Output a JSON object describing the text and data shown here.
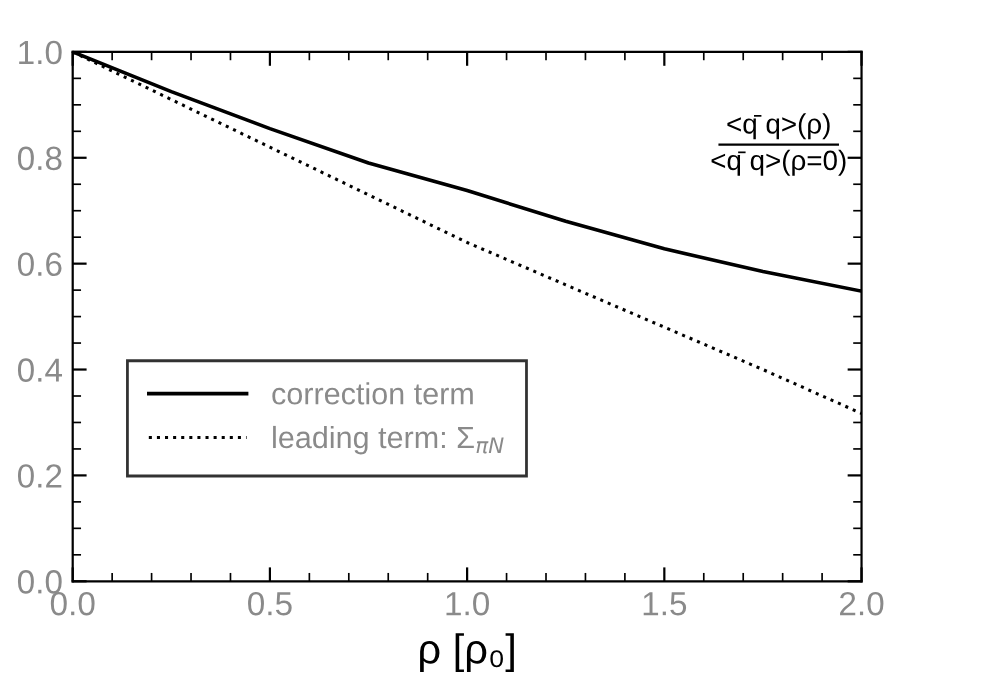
{
  "chart_data": {
    "type": "line",
    "xlabel": "ρ [ρ₀]",
    "x": [
      0,
      0.25,
      0.5,
      0.75,
      1.0,
      1.25,
      1.5,
      1.75,
      2.0
    ],
    "series": [
      {
        "name": "correction term",
        "color": "#000000",
        "line_style": "solid",
        "values": [
          1.0,
          0.925,
          0.855,
          0.79,
          0.738,
          0.68,
          0.628,
          0.585,
          0.548
        ]
      },
      {
        "name": "leading term: Σ$_{πN}$",
        "color": "#000000",
        "line_style": "dotted",
        "values": [
          1.0,
          0.91,
          0.82,
          0.73,
          0.64,
          0.56,
          0.48,
          0.4,
          0.317
        ]
      }
    ],
    "annotations": [
      "<q̄ q>(ρ)",
      "<q̄ q>(ρ=0)"
    ],
    "xlim": [
      0,
      2.0
    ],
    "xticks": [
      {
        "value": 0,
        "label": "0.0"
      },
      0.5,
      {
        "value": 1,
        "label": "1.0"
      },
      1.5,
      {
        "value": 2,
        "label": "2.0"
      }
    ],
    "ylim": [
      0,
      1.0
    ],
    "yticks": [
      {
        "value": 0,
        "label": "0.0"
      },
      0.2,
      0.4,
      0.6,
      0.8,
      {
        "value": 1,
        "label": "1.0"
      }
    ],
    "legend": "bottom left",
    "grid": false,
    "marker": "none"
  }
}
